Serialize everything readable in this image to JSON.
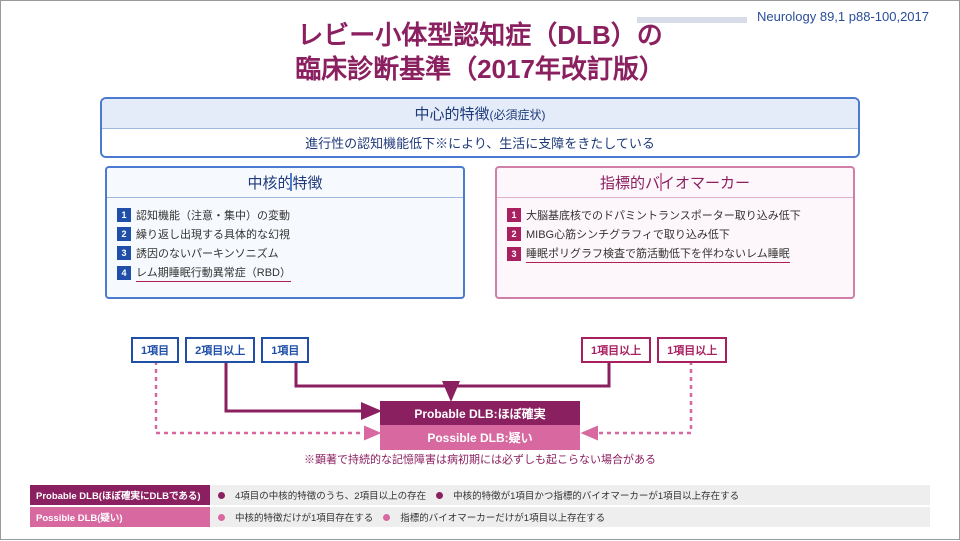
{
  "citation": "Neurology 89,1 p88-100,2017",
  "title_l1": "レビー小体型認知症（DLB）の",
  "title_l2": "臨床診断基準（2017年改訂版）",
  "central": {
    "head": "中心的特徴",
    "head_sub": "(必須症状)",
    "body": "進行性の認知機能低下※により、生活に支障をきたしている"
  },
  "core": {
    "head": "中核的特徴",
    "items": [
      {
        "n": "1",
        "t": "認知機能（注意・集中）の変動"
      },
      {
        "n": "2",
        "t": "繰り返し出現する具体的な幻視"
      },
      {
        "n": "3",
        "t": "誘因のないパーキンソニズム"
      },
      {
        "n": "4",
        "t": "レム期睡眠行動異常症（RBD）",
        "u": true
      }
    ]
  },
  "bio": {
    "head": "指標的バイオマーカー",
    "items": [
      {
        "n": "1",
        "t": "大脳基底核でのドパミントランスポーター取り込み低下"
      },
      {
        "n": "2",
        "t": "MIBG心筋シンチグラフィで取り込み低下"
      },
      {
        "n": "3",
        "t": "睡眠ポリグラフ検査で筋活動低下を伴わないレム睡眠",
        "u": true
      }
    ]
  },
  "tags_left": [
    "1項目",
    "2項目以上",
    "1項目"
  ],
  "tags_right": [
    "1項目以上",
    "1項目以上"
  ],
  "probable": "Probable DLB:ほぼ確実",
  "possible": "Possible DLB:疑い",
  "note": "※顕著で持続的な記憶障害は病初期には必ずしも起こらない場合がある",
  "legend": [
    {
      "h": "Probable DLB(ほぼ確実にDLBである)",
      "c": "dk",
      "pts": [
        "4項目の中核的特徴のうち、2項目以上の存在",
        "中核的特徴が1項目かつ指標的バイオマーカーが1項目以上存在する"
      ]
    },
    {
      "h": "Possible DLB(疑い)",
      "c": "lt",
      "pts": [
        "中核的特徴だけが1項目存在する",
        "指標的バイオマーカーだけが1項目以上存在する"
      ]
    }
  ],
  "colors": {
    "blue": "#1f4fa8",
    "magenta": "#8b2060",
    "pink": "#d868a0"
  }
}
